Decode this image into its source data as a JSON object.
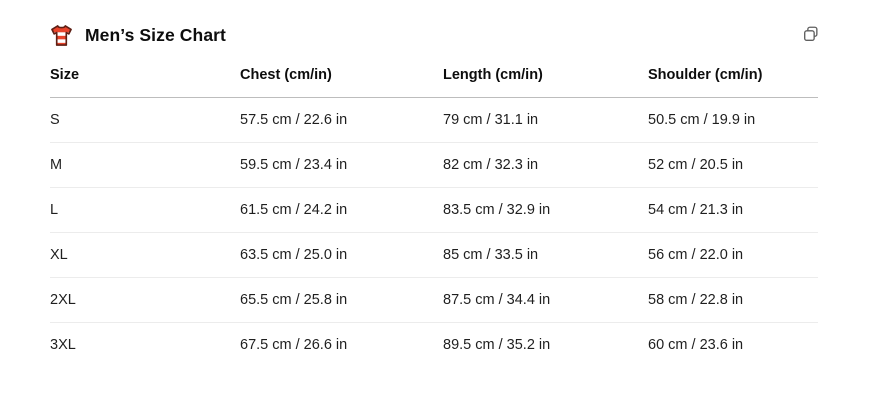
{
  "header": {
    "title": "Men’s Size Chart",
    "icon": "tshirt-icon"
  },
  "table": {
    "columns": [
      "Size",
      "Chest (cm/in)",
      "Length (cm/in)",
      "Shoulder (cm/in)"
    ],
    "rows": [
      [
        "S",
        "57.5 cm / 22.6 in",
        "79 cm / 31.1 in",
        "50.5 cm / 19.9 in"
      ],
      [
        "M",
        "59.5 cm / 23.4 in",
        "82 cm / 32.3 in",
        "52 cm / 20.5 in"
      ],
      [
        "L",
        "61.5 cm / 24.2 in",
        "83.5 cm / 32.9 in",
        "54 cm / 21.3 in"
      ],
      [
        "XL",
        "63.5 cm / 25.0 in",
        "85 cm / 33.5 in",
        "56 cm / 22.0 in"
      ],
      [
        "2XL",
        "65.5 cm / 25.8 in",
        "87.5 cm / 34.4 in",
        "58 cm / 22.8 in"
      ],
      [
        "3XL",
        "67.5 cm / 26.6 in",
        "89.5 cm / 35.2 in",
        "60 cm / 23.6 in"
      ]
    ]
  },
  "actions": {
    "copy_icon": "copy-icon"
  },
  "colors": {
    "title_text": "#0d0d0d",
    "cell_text": "#1f1f1f",
    "header_border": "#bdbdbd",
    "row_border": "#ececec",
    "copy_icon_stroke": "#5f5f5f",
    "shirt_red": "#e8432a",
    "shirt_outline": "#5e1f14",
    "shirt_stripe": "#ffffff"
  }
}
